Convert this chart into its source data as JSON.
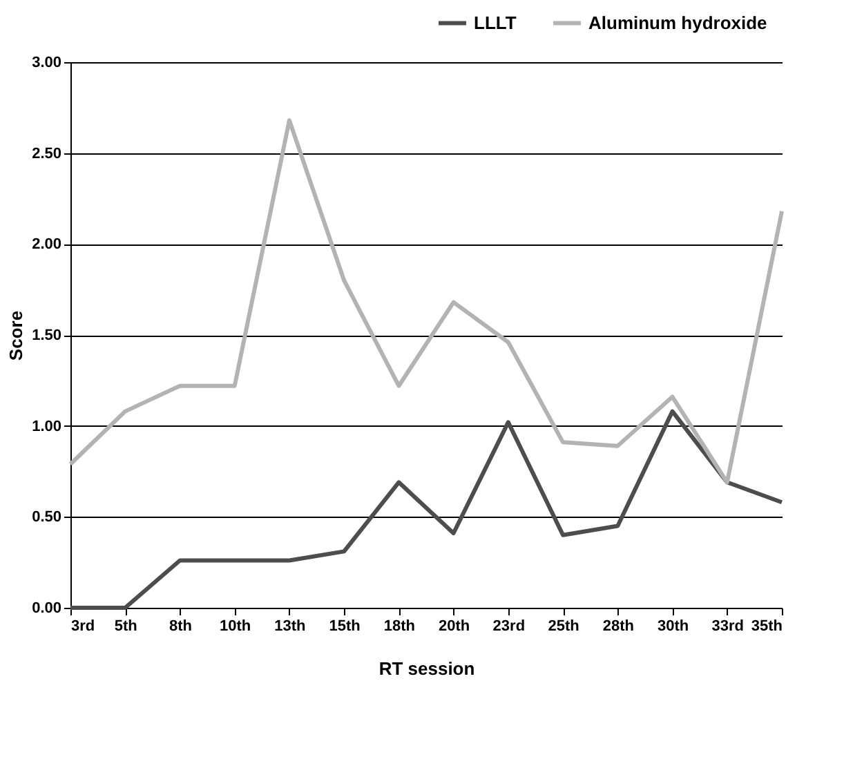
{
  "chart_data": {
    "type": "line",
    "xlabel": "RT session",
    "ylabel": "Score",
    "categories": [
      "3rd",
      "5th",
      "8th",
      "10th",
      "13th",
      "15th",
      "18th",
      "20th",
      "23rd",
      "25th",
      "28th",
      "30th",
      "33rd",
      "35th"
    ],
    "series": [
      {
        "name": "LLLT",
        "color": "#4d4d4f",
        "values": [
          0,
          0,
          0.26,
          0.26,
          0.26,
          0.31,
          0.69,
          0.41,
          1.02,
          0.4,
          0.45,
          1.08,
          0.69,
          0.58
        ]
      },
      {
        "name": "Aluminum hydroxide",
        "color": "#b3b3b5",
        "values": [
          0.79,
          1.08,
          1.22,
          1.22,
          2.68,
          1.8,
          1.22,
          1.68,
          1.46,
          0.91,
          0.89,
          1.16,
          0.69,
          2.18
        ]
      }
    ],
    "ylim": [
      0,
      3
    ],
    "yticks": [
      {
        "value": 0,
        "label": "0.00"
      },
      {
        "value": 0.5,
        "label": "0.50"
      },
      {
        "value": 1,
        "label": "1.00"
      },
      {
        "value": 1.5,
        "label": "1.50"
      },
      {
        "value": 2,
        "label": "2.00"
      },
      {
        "value": 2.5,
        "label": "2.50"
      },
      {
        "value": 3,
        "label": "3.00"
      }
    ],
    "grid": "y",
    "legend": "top right",
    "marker": "none",
    "line_style": "solid"
  }
}
